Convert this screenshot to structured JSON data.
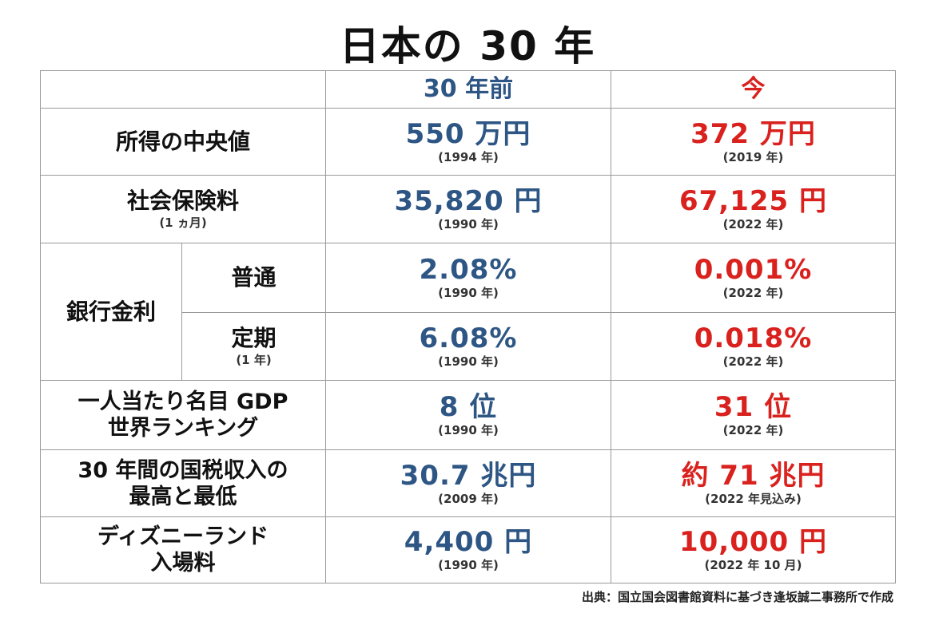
{
  "title": "日本の 30 年",
  "header": {
    "then": "30 年前",
    "now": "今"
  },
  "rows": {
    "income": {
      "label": "所得の中央値",
      "then_value": "550 万円",
      "then_year": "(1994 年)",
      "now_value": "372 万円",
      "now_year": "(2019 年)"
    },
    "insurance": {
      "label": "社会保険料",
      "sublabel": "(1 ヵ月)",
      "then_value": "35,820 円",
      "then_year": "(1990 年)",
      "now_value": "67,125 円",
      "now_year": "(2022 年)"
    },
    "interest": {
      "label": "銀行金利",
      "ordinary": {
        "label": "普通",
        "then_value": "2.08%",
        "then_year": "(1990 年)",
        "now_value": "0.001%",
        "now_year": "(2022 年)"
      },
      "fixed": {
        "label": "定期",
        "sublabel": "(1 年)",
        "then_value": "6.08%",
        "then_year": "(1990 年)",
        "now_value": "0.018%",
        "now_year": "(2022 年)"
      }
    },
    "gdp": {
      "label_line1": "一人当たり名目 GDP",
      "label_line2": "世界ランキング",
      "then_value": "8 位",
      "then_year": "(1990 年)",
      "now_value": "31 位",
      "now_year": "(2022 年)"
    },
    "tax": {
      "label_line1": "30 年間の国税収入の",
      "label_line2": "最高と最低",
      "then_value": "30.7 兆円",
      "then_year": "(2009 年)",
      "now_value": "約 71 兆円",
      "now_year": "(2022 年見込み)"
    },
    "disney": {
      "label_line1": "ディズニーランド",
      "label_line2": "入場料",
      "then_value": "4,400 円",
      "then_year": "(1990 年)",
      "now_value": "10,000 円",
      "now_year": "(2022 年 10 月)"
    }
  },
  "source": "出典：国立国会図書館資料に基づき逢坂誠二事務所で作成",
  "colors": {
    "then": "#2e5685",
    "now": "#d9211e",
    "border": "#9a9a9a"
  }
}
